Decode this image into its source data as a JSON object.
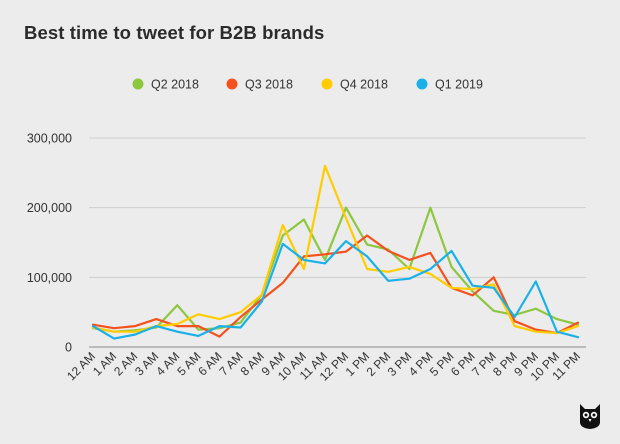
{
  "title": "Best time to tweet for B2B brands",
  "logo": "owl-logo",
  "chart_data": {
    "type": "line",
    "title": "Best time to tweet for B2B brands",
    "xlabel": "",
    "ylabel": "",
    "ylim": [
      0,
      300000
    ],
    "yticks": [
      0,
      100000,
      200000,
      300000
    ],
    "ytick_labels": [
      "0",
      "100,000",
      "200,000",
      "300,000"
    ],
    "grid": "horizontal",
    "legend_position": "top-center",
    "categories": [
      "12 AM",
      "1 AM",
      "2 AM",
      "3 AM",
      "4 AM",
      "5 AM",
      "6 AM",
      "7 AM",
      "8 AM",
      "9 AM",
      "10 AM",
      "11 AM",
      "12 PM",
      "1 PM",
      "2 PM",
      "3 PM",
      "4 PM",
      "5 PM",
      "6 PM",
      "7 PM",
      "8 PM",
      "9 PM",
      "10 PM",
      "11 PM"
    ],
    "series": [
      {
        "name": "Q2 2018",
        "color": "#8dc63f",
        "values": [
          27000,
          22000,
          24000,
          28000,
          60000,
          25000,
          27000,
          35000,
          75000,
          160000,
          183000,
          125000,
          200000,
          147000,
          140000,
          112000,
          200000,
          115000,
          80000,
          52000,
          46000,
          55000,
          40000,
          32000
        ]
      },
      {
        "name": "Q3 2018",
        "color": "#f4511e",
        "values": [
          32000,
          27000,
          30000,
          40000,
          30000,
          30000,
          15000,
          43000,
          68000,
          92000,
          130000,
          133000,
          137000,
          160000,
          138000,
          125000,
          135000,
          85000,
          74000,
          100000,
          37000,
          25000,
          20000,
          35000
        ]
      },
      {
        "name": "Q4 2018",
        "color": "#ffcc00",
        "values": [
          28000,
          22000,
          22000,
          30000,
          33000,
          47000,
          40000,
          50000,
          75000,
          175000,
          112000,
          260000,
          185000,
          112000,
          108000,
          115000,
          105000,
          85000,
          83000,
          90000,
          30000,
          22000,
          20000,
          30000
        ]
      },
      {
        "name": "Q1 2019",
        "color": "#1ab0e8",
        "values": [
          30000,
          12000,
          18000,
          30000,
          22000,
          16000,
          30000,
          28000,
          65000,
          148000,
          125000,
          120000,
          152000,
          130000,
          95000,
          98000,
          112000,
          138000,
          88000,
          85000,
          43000,
          94000,
          22000,
          14000
        ]
      }
    ]
  }
}
